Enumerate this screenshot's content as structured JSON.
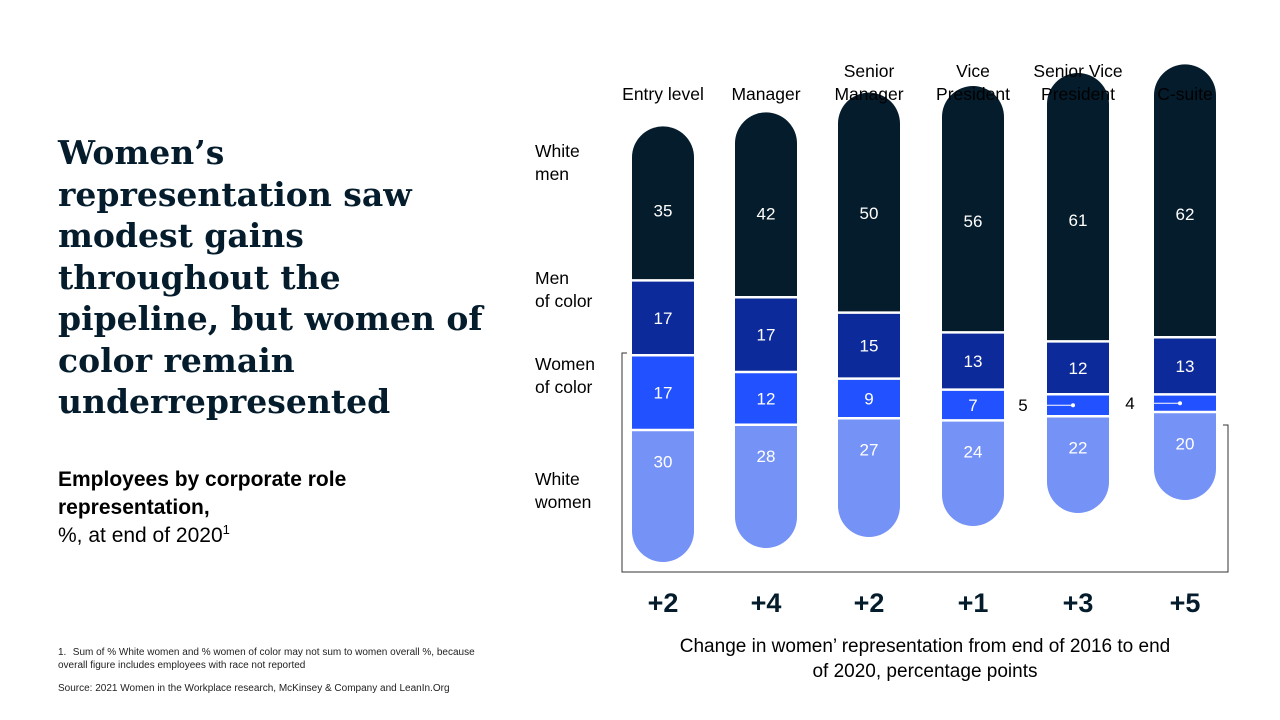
{
  "title": "Women’s representation saw modest gains throughout the pipeline, but women of color remain underrepresented",
  "subtitle": {
    "bold": "Employees by corporate role representation,",
    "normal": "%, at end of 2020",
    "footnote_marker": "1"
  },
  "footnote": {
    "number": "1.",
    "text": "Sum of % White women and % women of color may not sum to women overall %, because overall figure includes employees with race not reported"
  },
  "source": "Source: 2021 Women in the Workplace research, McKinsey & Company and LeanIn.Org",
  "colors": {
    "white_men": "#051c2c",
    "men_of_color": "#0d2a9a",
    "women_of_color": "#2251ff",
    "white_women": "#7592f6"
  },
  "chart_data": {
    "type": "bar",
    "stacked": true,
    "categories": [
      [
        "Entry level"
      ],
      [
        "Manager"
      ],
      [
        "Senior",
        "Manager"
      ],
      [
        "Vice",
        "President"
      ],
      [
        "Senior Vice",
        "President"
      ],
      [
        "C-suite"
      ]
    ],
    "series": [
      {
        "name": [
          "White",
          "men"
        ],
        "values": [
          35,
          42,
          50,
          56,
          61,
          62
        ]
      },
      {
        "name": [
          "Men",
          "of color"
        ],
        "values": [
          17,
          17,
          15,
          13,
          12,
          13
        ]
      },
      {
        "name": [
          "Women",
          "of color"
        ],
        "values": [
          17,
          12,
          9,
          7,
          5,
          4
        ]
      },
      {
        "name": [
          "White",
          "women"
        ],
        "values": [
          30,
          28,
          27,
          24,
          22,
          20
        ]
      }
    ],
    "change": {
      "values": [
        "+2",
        "+4",
        "+2",
        "+1",
        "+3",
        "+5"
      ],
      "caption": [
        "Change in women’ representation from end of 2016 to end",
        "of 2020, percentage points"
      ]
    },
    "unit": "%"
  }
}
